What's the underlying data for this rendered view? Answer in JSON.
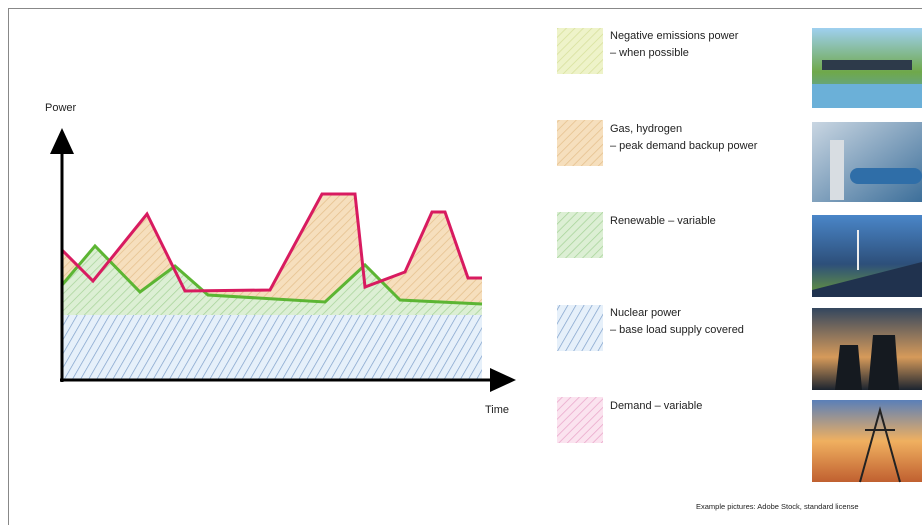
{
  "axis": {
    "y_label": "Power",
    "x_label": "Time"
  },
  "legend": [
    {
      "lines": [
        "Negative emissions power",
        "– when possible"
      ]
    },
    {
      "lines": [
        "Gas, hydrogen",
        "– peak demand backup power"
      ]
    },
    {
      "lines": [
        "Renewable – variable"
      ]
    },
    {
      "lines": [
        "Nuclear power",
        "– base load supply covered"
      ]
    },
    {
      "lines": [
        "Demand – variable"
      ]
    }
  ],
  "credit": "Example pictures: Adobe Stock, standard license"
}
